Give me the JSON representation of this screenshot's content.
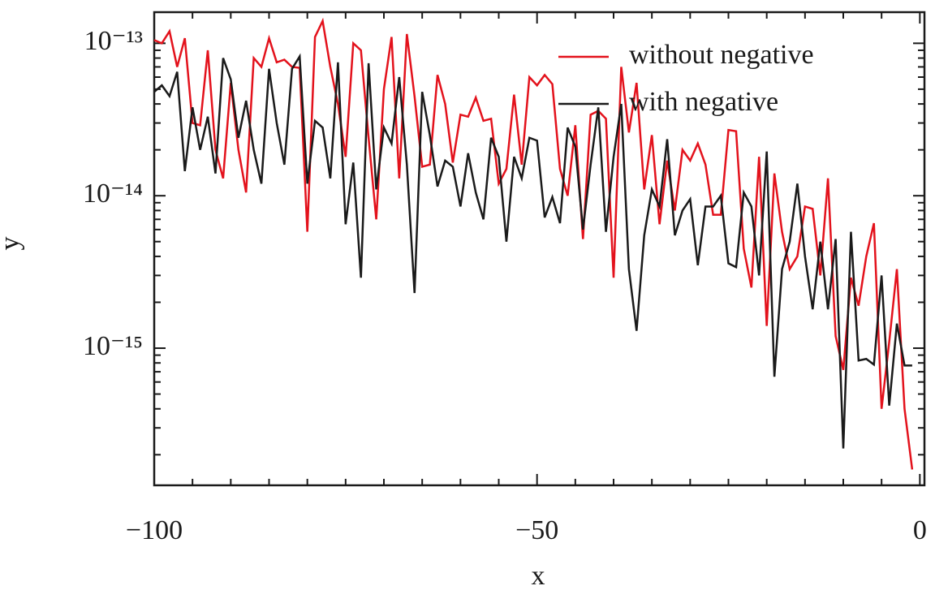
{
  "chart_data": {
    "type": "line",
    "xlabel": "x",
    "ylabel": "y",
    "x": [
      -100,
      -99,
      -98,
      -97,
      -96,
      -95,
      -94,
      -93,
      -92,
      -91,
      -90,
      -89,
      -88,
      -87,
      -86,
      -85,
      -84,
      -83,
      -82,
      -81,
      -80,
      -79,
      -78,
      -77,
      -76,
      -75,
      -74,
      -73,
      -72,
      -71,
      -70,
      -69,
      -68,
      -67,
      -66,
      -65,
      -64,
      -63,
      -62,
      -61,
      -60,
      -59,
      -58,
      -57,
      -56,
      -55,
      -54,
      -53,
      -52,
      -51,
      -50,
      -49,
      -48,
      -47,
      -46,
      -45,
      -44,
      -43,
      -42,
      -41,
      -40,
      -39,
      -38,
      -37,
      -36,
      -35,
      -34,
      -33,
      -32,
      -31,
      -30,
      -29,
      -28,
      -27,
      -26,
      -25,
      -24,
      -23,
      -22,
      -21,
      -20,
      -19,
      -18,
      -17,
      -16,
      -15,
      -14,
      -13,
      -12,
      -11,
      -10,
      -9,
      -8,
      -7,
      -6,
      -5,
      -4,
      -3,
      -2,
      -1
    ],
    "series": [
      {
        "name": "without negative",
        "color": "#e3121c",
        "values": [
          1.05e-13,
          1e-13,
          1.2e-13,
          7e-14,
          1.08e-13,
          3e-14,
          2.9e-14,
          9e-14,
          2e-14,
          1.3e-14,
          5.5e-14,
          2e-14,
          1.05e-14,
          8e-14,
          7e-14,
          1.08e-13,
          7.5e-14,
          7.8e-14,
          7e-14,
          6.9e-14,
          5.8e-15,
          1.1e-13,
          1.4e-13,
          7e-14,
          4e-14,
          1.8e-14,
          1e-13,
          9e-14,
          2.4e-14,
          7e-15,
          5e-14,
          1.1e-13,
          1.3e-14,
          1.15e-13,
          4.5e-14,
          1.55e-14,
          1.6e-14,
          6.2e-14,
          4e-14,
          1.65e-14,
          3.4e-14,
          3.3e-14,
          4.4e-14,
          3.1e-14,
          3.2e-14,
          1.2e-14,
          1.5e-14,
          4.6e-14,
          1.6e-14,
          6e-14,
          5.3e-14,
          6.2e-14,
          5.4e-14,
          1.5e-14,
          1e-14,
          2.9e-14,
          5.2e-15,
          3.4e-14,
          3.6e-14,
          3.2e-14,
          2.9e-15,
          7e-14,
          2.6e-14,
          5.5e-14,
          1.1e-14,
          2.5e-14,
          6.5e-15,
          1.7e-14,
          8e-15,
          2e-14,
          1.7e-14,
          2.2e-14,
          1.6e-14,
          7.5e-15,
          7.5e-15,
          2.7e-14,
          2.65e-14,
          4.5e-15,
          2.5e-15,
          1.8e-14,
          1.4e-15,
          1.4e-14,
          5.8e-15,
          3.3e-15,
          4e-15,
          8.5e-15,
          8.2e-15,
          3e-15,
          1.3e-14,
          1.2e-15,
          7.2e-16,
          2.9e-15,
          1.9e-15,
          4e-15,
          6.6e-15,
          4e-16,
          1.1e-15,
          3.3e-15,
          4e-16,
          1.6e-16
        ]
      },
      {
        "name": "with negative",
        "color": "#1a1a1a",
        "values": [
          4.8e-14,
          5.3e-14,
          4.5e-14,
          6.5e-14,
          1.45e-14,
          3.8e-14,
          2e-14,
          3.3e-14,
          1.4e-14,
          8e-14,
          5.8e-14,
          2.4e-14,
          4.2e-14,
          2e-14,
          1.2e-14,
          6.8e-14,
          3e-14,
          1.6e-14,
          6.8e-14,
          8.2e-14,
          1.2e-14,
          3.1e-14,
          2.8e-14,
          1.3e-14,
          7.5e-14,
          6.5e-15,
          1.65e-14,
          2.9e-15,
          7.4e-14,
          1.1e-14,
          2.8e-14,
          2.2e-14,
          6e-14,
          1.6e-14,
          2.3e-15,
          4.8e-14,
          2.5e-14,
          1.15e-14,
          1.7e-14,
          1.55e-14,
          8.5e-15,
          1.9e-14,
          1.05e-14,
          7e-15,
          2.4e-14,
          1.8e-14,
          5e-15,
          1.8e-14,
          1.3e-14,
          2.4e-14,
          2.3e-14,
          7.2e-15,
          9.8e-15,
          6.6e-15,
          2.8e-14,
          2.1e-14,
          6e-15,
          1.6e-14,
          3.8e-14,
          5.8e-15,
          1.8e-14,
          4e-14,
          3.3e-15,
          1.3e-15,
          5.5e-15,
          1.1e-14,
          8.5e-15,
          2.35e-14,
          5.5e-15,
          8e-15,
          9.5e-15,
          3.5e-15,
          8.5e-15,
          8.5e-15,
          1e-14,
          3.6e-15,
          3.4e-15,
          1.05e-14,
          8.5e-15,
          3e-15,
          1.95e-14,
          6.5e-16,
          3.3e-15,
          5e-15,
          1.2e-14,
          4e-15,
          1.8e-15,
          5e-15,
          1.8e-15,
          5.2e-15,
          2.2e-16,
          5.8e-15,
          8.3e-16,
          8.5e-16,
          7.8e-16,
          3e-15,
          4.2e-16,
          1.45e-15,
          7.7e-16,
          7.7e-16
        ]
      }
    ],
    "xlim": [
      -100,
      0.6
    ],
    "xticks": [
      {
        "value": -100,
        "label": "−100"
      },
      {
        "value": -50,
        "label": "−50"
      },
      0
    ],
    "xminorticks": [
      -95,
      -90,
      -85,
      -80,
      -75,
      -70,
      -65,
      -60,
      -55,
      -45,
      -40,
      -35,
      -30,
      -25,
      -20,
      -15,
      -10,
      -5
    ],
    "ylim": [
      1.26e-16,
      1.6e-13
    ],
    "yscale": "log",
    "yticks": [
      {
        "value": 1e-15,
        "label": "10⁻¹⁵"
      },
      {
        "value": 1e-14,
        "label": "10⁻¹⁴"
      },
      {
        "value": 1e-13,
        "label": "10⁻¹³"
      }
    ],
    "yminorticks": [
      2e-16,
      3e-16,
      4e-16,
      5e-16,
      6e-16,
      7e-16,
      8e-16,
      9e-16,
      2e-15,
      3e-15,
      4e-15,
      5e-15,
      6e-15,
      7e-15,
      8e-15,
      9e-15,
      2e-14,
      3e-14,
      4e-14,
      5e-14,
      6e-14,
      7e-14,
      8e-14,
      9e-14
    ],
    "legend": "upper right"
  }
}
